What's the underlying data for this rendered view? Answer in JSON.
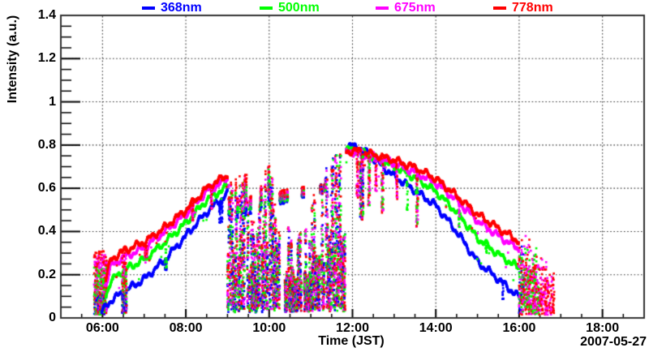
{
  "chart_data": {
    "type": "scatter",
    "title": "",
    "xlabel": "Time (JST)",
    "ylabel": "Intensity (a.u.)",
    "date_label": "2007-05-27",
    "xlim_hours": [
      5,
      19
    ],
    "ylim": [
      0,
      1.4
    ],
    "x_major_ticks": {
      "hours": [
        6,
        8,
        10,
        12,
        14,
        16,
        18
      ],
      "labels": [
        "06:00",
        "08:00",
        "10:00",
        "12:00",
        "14:00",
        "16:00",
        "18:00"
      ]
    },
    "x_minor_step_hours": 0.5,
    "y_major_ticks": {
      "values": [
        0,
        0.2,
        0.4,
        0.6,
        0.8,
        1,
        1.2,
        1.4
      ],
      "labels": [
        "0",
        "0.2",
        "0.4",
        "0.6",
        "0.8",
        "1",
        "1.2",
        "1.4"
      ]
    },
    "y_minor_step": 0.05,
    "grid": {
      "show": true,
      "line_style": "dotted",
      "color": "#333333",
      "major_x_every_hours": 2,
      "major_y_every": 0.2
    },
    "background_color": "#ffffff",
    "frame_color": "#333333",
    "sampling_step_hours": 0.004,
    "series": [
      {
        "label": "368nm",
        "color": "#0000ff",
        "smooth_start": 5.98,
        "morning_anchors": [
          [
            5.95,
            0.02
          ],
          [
            6.2,
            0.08
          ],
          [
            6.5,
            0.12
          ],
          [
            7.0,
            0.18
          ],
          [
            7.5,
            0.27
          ],
          [
            8.0,
            0.38
          ],
          [
            8.5,
            0.49
          ],
          [
            9.0,
            0.575
          ]
        ],
        "afternoon_anchors": [
          [
            11.85,
            0.79
          ],
          [
            12.05,
            0.795
          ],
          [
            12.3,
            0.77
          ],
          [
            12.6,
            0.72
          ],
          [
            13.0,
            0.655
          ],
          [
            13.5,
            0.59
          ],
          [
            14.0,
            0.52
          ],
          [
            14.5,
            0.4
          ],
          [
            15.0,
            0.26
          ],
          [
            15.5,
            0.18
          ],
          [
            16.03,
            0.09
          ]
        ]
      },
      {
        "label": "500nm",
        "color": "#00ff00",
        "smooth_start": 6.08,
        "morning_anchors": [
          [
            5.95,
            0.04
          ],
          [
            6.2,
            0.17
          ],
          [
            6.5,
            0.22
          ],
          [
            7.0,
            0.27
          ],
          [
            7.5,
            0.35
          ],
          [
            8.0,
            0.44
          ],
          [
            8.5,
            0.545
          ],
          [
            9.0,
            0.61
          ]
        ],
        "afternoon_anchors": [
          [
            11.85,
            0.775
          ],
          [
            12.05,
            0.78
          ],
          [
            12.3,
            0.76
          ],
          [
            12.6,
            0.735
          ],
          [
            13.0,
            0.7
          ],
          [
            13.5,
            0.65
          ],
          [
            14.0,
            0.585
          ],
          [
            14.5,
            0.49
          ],
          [
            15.0,
            0.37
          ],
          [
            15.5,
            0.295
          ],
          [
            16.0,
            0.23
          ]
        ]
      },
      {
        "label": "675nm",
        "color": "#ff00ff",
        "smooth_start": 6.08,
        "morning_anchors": [
          [
            5.95,
            0.06
          ],
          [
            6.2,
            0.24
          ],
          [
            6.5,
            0.28
          ],
          [
            7.0,
            0.325
          ],
          [
            7.5,
            0.4
          ],
          [
            8.0,
            0.48
          ],
          [
            8.5,
            0.585
          ],
          [
            9.0,
            0.645
          ]
        ],
        "afternoon_anchors": [
          [
            11.85,
            0.765
          ],
          [
            12.05,
            0.77
          ],
          [
            12.3,
            0.755
          ],
          [
            12.6,
            0.74
          ],
          [
            13.0,
            0.715
          ],
          [
            13.5,
            0.675
          ],
          [
            14.0,
            0.625
          ],
          [
            14.5,
            0.545
          ],
          [
            15.0,
            0.45
          ],
          [
            15.5,
            0.38
          ],
          [
            15.99,
            0.32
          ]
        ]
      },
      {
        "label": "778nm",
        "color": "#ff0000",
        "smooth_start": 6.08,
        "morning_anchors": [
          [
            5.95,
            0.08
          ],
          [
            6.2,
            0.27
          ],
          [
            6.5,
            0.31
          ],
          [
            7.0,
            0.35
          ],
          [
            7.5,
            0.42
          ],
          [
            8.0,
            0.5
          ],
          [
            8.5,
            0.6
          ],
          [
            9.0,
            0.662
          ]
        ],
        "afternoon_anchors": [
          [
            11.85,
            0.77
          ],
          [
            12.05,
            0.775
          ],
          [
            12.3,
            0.765
          ],
          [
            12.6,
            0.75
          ],
          [
            13.0,
            0.73
          ],
          [
            13.5,
            0.695
          ],
          [
            14.0,
            0.645
          ],
          [
            14.5,
            0.565
          ],
          [
            15.0,
            0.48
          ],
          [
            15.5,
            0.415
          ],
          [
            15.99,
            0.355
          ]
        ]
      }
    ],
    "cloud_noise_segment": {
      "t0": 9.0,
      "t1": 11.83
    },
    "sunrise_noise_segment": {
      "t0": 5.8,
      "t1": 6.1,
      "cap": 0.3
    },
    "sunset_noise_segment": {
      "t0": 16.0,
      "t1": 16.88,
      "cap_start": 0.42,
      "cap_end": 0.2,
      "series_end_times": [
        16.12,
        16.5,
        16.82,
        16.88
      ]
    },
    "dropouts": [
      {
        "t0": 6.47,
        "t1": 6.58,
        "floor": 0.02,
        "series": [
          0,
          1,
          2,
          3
        ]
      },
      {
        "t0": 7.02,
        "t1": 7.07,
        "floor": 0.27,
        "series": [
          1,
          2,
          3
        ]
      },
      {
        "t0": 7.5,
        "t1": 7.54,
        "floor": 0.22,
        "series": [
          0,
          1
        ]
      },
      {
        "t0": 8.15,
        "t1": 8.18,
        "floor": 0.45,
        "series": [
          2,
          3
        ]
      },
      {
        "t0": 8.6,
        "t1": 8.63,
        "floor": 0.5,
        "series": [
          2,
          3
        ]
      },
      {
        "t0": 8.8,
        "t1": 8.88,
        "floor": 0.44,
        "series": [
          0
        ]
      },
      {
        "t0": 12.1,
        "t1": 12.14,
        "floor": 0.55,
        "series": [
          2,
          3
        ]
      },
      {
        "t0": 12.18,
        "t1": 12.26,
        "floor": 0.45,
        "series": [
          0,
          1,
          2,
          3
        ]
      },
      {
        "t0": 12.38,
        "t1": 12.42,
        "floor": 0.52,
        "series": [
          1,
          2,
          3
        ]
      },
      {
        "t0": 12.55,
        "t1": 12.58,
        "floor": 0.58,
        "series": [
          2,
          3
        ]
      },
      {
        "t0": 12.7,
        "t1": 12.74,
        "floor": 0.48,
        "series": [
          1,
          2,
          3
        ]
      },
      {
        "t0": 13.05,
        "t1": 13.08,
        "floor": 0.55,
        "series": [
          2,
          3
        ]
      },
      {
        "t0": 13.3,
        "t1": 13.33,
        "floor": 0.5,
        "series": [
          1
        ]
      },
      {
        "t0": 13.53,
        "t1": 13.57,
        "floor": 0.42,
        "series": [
          1,
          2,
          3
        ]
      },
      {
        "t0": 14.55,
        "t1": 14.57,
        "floor": 0.42,
        "series": [
          1,
          2
        ]
      },
      {
        "t0": 15.2,
        "t1": 15.22,
        "floor": 0.3,
        "series": [
          1
        ]
      },
      {
        "t0": 15.6,
        "t1": 15.62,
        "floor": 0.08,
        "series": [
          0
        ]
      }
    ]
  },
  "legend": {
    "entries": [
      {
        "label": "368nm",
        "color": "#0000ff"
      },
      {
        "label": "500nm",
        "color": "#00ff00"
      },
      {
        "label": "675nm",
        "color": "#ff00ff"
      },
      {
        "label": "778nm",
        "color": "#ff0000"
      }
    ]
  }
}
